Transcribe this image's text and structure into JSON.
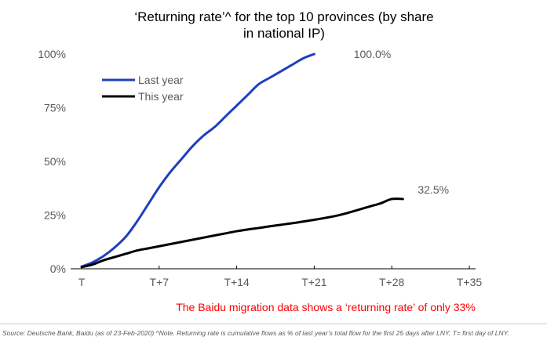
{
  "chart_data": {
    "type": "line",
    "title_lines": [
      "‘Returning rate’^ for the top 10 provinces (by share",
      "in national IP)"
    ],
    "xlabel": "",
    "ylabel": "",
    "x": [
      0,
      1,
      2,
      3,
      4,
      5,
      6,
      7,
      8,
      9,
      10,
      11,
      12,
      13,
      14,
      15,
      16,
      17,
      18,
      19,
      20,
      21,
      22,
      23,
      24
    ],
    "x_ticks": [
      {
        "value": 0,
        "label": "T"
      },
      {
        "value": 7,
        "label": "T+7"
      },
      {
        "value": 14,
        "label": "T+14"
      },
      {
        "value": 21,
        "label": "T+21"
      },
      {
        "value": 28,
        "label": "T+28"
      },
      {
        "value": 35,
        "label": "T+35"
      }
    ],
    "xlim": [
      0,
      35
    ],
    "ylim": [
      0,
      100
    ],
    "y_ticks": [
      {
        "value": 0,
        "label": "0%"
      },
      {
        "value": 25,
        "label": "25%"
      },
      {
        "value": 50,
        "label": "50%"
      },
      {
        "value": 75,
        "label": "75%"
      },
      {
        "value": 100,
        "label": "100%"
      }
    ],
    "grid": false,
    "legend_position": "top-left",
    "series": [
      {
        "name": "Last year",
        "color": "#1f3fbf",
        "x": [
          0,
          1,
          2,
          3,
          4,
          5,
          6,
          7,
          8,
          9,
          10,
          11,
          12,
          13,
          14,
          15,
          16,
          17,
          18,
          19,
          20,
          21,
          22,
          23,
          24
        ],
        "values": [
          1,
          3,
          6,
          10,
          15,
          22,
          30,
          38,
          45,
          51,
          57,
          62,
          66,
          71,
          76,
          81,
          86,
          89,
          92,
          95,
          98,
          100,
          100,
          100,
          100
        ],
        "end_label": "100.0%",
        "end_label_x": 24,
        "end_label_y": 100
      },
      {
        "name": "This year",
        "color": "#000000",
        "x": [
          0,
          1,
          2,
          3,
          4,
          5,
          6,
          7,
          8,
          9,
          10,
          11,
          12,
          13,
          14,
          15,
          16,
          17,
          18,
          19,
          20,
          21,
          22,
          23,
          24,
          25,
          26,
          27,
          28,
          29
        ],
        "values": [
          0.8,
          2,
          4,
          5.5,
          7,
          8.5,
          9.5,
          10.5,
          11.5,
          12.5,
          13.5,
          14.5,
          15.5,
          16.5,
          17.5,
          18.3,
          19,
          19.8,
          20.5,
          21.2,
          22,
          22.8,
          23.7,
          24.7,
          26,
          27.5,
          29,
          30.5,
          32.5,
          32.5
        ],
        "end_label": "32.5%",
        "end_label_x": 29.5,
        "end_label_y": 32.5
      }
    ]
  },
  "annotation": "The Baidu migration data shows a ‘returning rate’ of only 33%",
  "source": "Source: Deutsche Bank, Baidu (as of 23-Feb-2020)  ^Note. Returning rate is cumulative flows as % of last year’s total flow for the first 25 days after LNY.  T= first day of LNY."
}
